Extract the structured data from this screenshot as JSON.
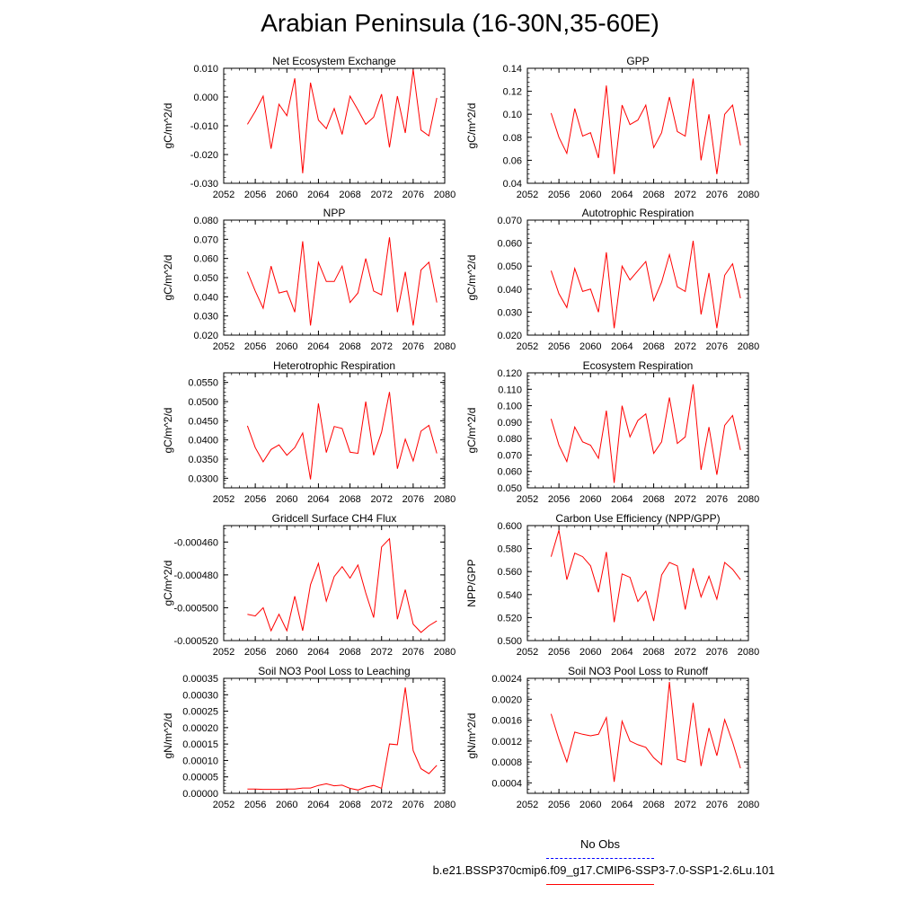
{
  "title": "Arabian Peninsula (16-30N,35-60E)",
  "colors": {
    "model_line": "#ff0000",
    "obs_line": "#0000ff"
  },
  "legend": {
    "obs_label": "No Obs",
    "model_label": "b.e21.BSSP370cmip6.f09_g17.CMIP6-SSP3-7.0-SSP1-2.6Lu.101"
  },
  "chart_data": [
    {
      "type": "line",
      "title": "Net Ecosystem Exchange",
      "ylabel": "gC/m^2/d",
      "xlim": [
        2052,
        2080
      ],
      "xticks": [
        2052,
        2056,
        2060,
        2064,
        2068,
        2072,
        2076,
        2080
      ],
      "xtick_labels": [
        "2052",
        "2056",
        "2060",
        "2064",
        "2068",
        "2072",
        "2076",
        "2080"
      ],
      "ylim": [
        -0.03,
        0.01
      ],
      "yticks": [
        -0.03,
        -0.02,
        -0.01,
        0.0,
        0.01
      ],
      "ytick_labels": [
        "-0.030",
        "-0.020",
        "-0.010",
        "0.000",
        "0.010"
      ],
      "x": [
        2055,
        2056,
        2057,
        2058,
        2059,
        2060,
        2061,
        2062,
        2063,
        2064,
        2065,
        2066,
        2067,
        2068,
        2069,
        2070,
        2071,
        2072,
        2073,
        2074,
        2075,
        2076,
        2077,
        2078,
        2079
      ],
      "series": [
        {
          "values": [
            -0.0095,
            -0.005,
            0.0003,
            -0.018,
            -0.0025,
            -0.0065,
            0.0065,
            -0.0265,
            0.005,
            -0.008,
            -0.011,
            -0.004,
            -0.013,
            0.0003,
            -0.0045,
            -0.0095,
            -0.007,
            0.001,
            -0.0175,
            0.0003,
            -0.0125,
            0.0095,
            -0.0115,
            -0.0135,
            -0.0003
          ]
        }
      ]
    },
    {
      "type": "line",
      "title": "GPP",
      "ylabel": "gC/m^2/d",
      "xlim": [
        2052,
        2080
      ],
      "xticks": [
        2052,
        2056,
        2060,
        2064,
        2068,
        2072,
        2076,
        2080
      ],
      "xtick_labels": [
        "2052",
        "2056",
        "2060",
        "2064",
        "2068",
        "2072",
        "2076",
        "2080"
      ],
      "ylim": [
        0.04,
        0.14
      ],
      "yticks": [
        0.04,
        0.06,
        0.08,
        0.1,
        0.12,
        0.14
      ],
      "ytick_labels": [
        "0.04",
        "0.06",
        "0.08",
        "0.10",
        "0.12",
        "0.14"
      ],
      "x": [
        2055,
        2056,
        2057,
        2058,
        2059,
        2060,
        2061,
        2062,
        2063,
        2064,
        2065,
        2066,
        2067,
        2068,
        2069,
        2070,
        2071,
        2072,
        2073,
        2074,
        2075,
        2076,
        2077,
        2078,
        2079
      ],
      "series": [
        {
          "values": [
            0.101,
            0.08,
            0.066,
            0.105,
            0.081,
            0.084,
            0.062,
            0.125,
            0.048,
            0.108,
            0.091,
            0.095,
            0.108,
            0.071,
            0.084,
            0.115,
            0.085,
            0.081,
            0.131,
            0.06,
            0.1,
            0.048,
            0.1,
            0.108,
            0.073
          ]
        }
      ]
    },
    {
      "type": "line",
      "title": "NPP",
      "ylabel": "gC/m^2/d",
      "xlim": [
        2052,
        2080
      ],
      "xticks": [
        2052,
        2056,
        2060,
        2064,
        2068,
        2072,
        2076,
        2080
      ],
      "xtick_labels": [
        "2052",
        "2056",
        "2060",
        "2064",
        "2068",
        "2072",
        "2076",
        "2080"
      ],
      "ylim": [
        0.02,
        0.08
      ],
      "yticks": [
        0.02,
        0.03,
        0.04,
        0.05,
        0.06,
        0.07,
        0.08
      ],
      "ytick_labels": [
        "0.020",
        "0.030",
        "0.040",
        "0.050",
        "0.060",
        "0.070",
        "0.080"
      ],
      "x": [
        2055,
        2056,
        2057,
        2058,
        2059,
        2060,
        2061,
        2062,
        2063,
        2064,
        2065,
        2066,
        2067,
        2068,
        2069,
        2070,
        2071,
        2072,
        2073,
        2074,
        2075,
        2076,
        2077,
        2078,
        2079
      ],
      "series": [
        {
          "values": [
            0.053,
            0.043,
            0.034,
            0.056,
            0.042,
            0.043,
            0.032,
            0.069,
            0.025,
            0.058,
            0.048,
            0.048,
            0.056,
            0.037,
            0.042,
            0.06,
            0.043,
            0.041,
            0.071,
            0.032,
            0.053,
            0.025,
            0.054,
            0.058,
            0.037
          ]
        }
      ]
    },
    {
      "type": "line",
      "title": "Autotrophic Respiration",
      "ylabel": "gC/m^2/d",
      "xlim": [
        2052,
        2080
      ],
      "xticks": [
        2052,
        2056,
        2060,
        2064,
        2068,
        2072,
        2076,
        2080
      ],
      "xtick_labels": [
        "2052",
        "2056",
        "2060",
        "2064",
        "2068",
        "2072",
        "2076",
        "2080"
      ],
      "ylim": [
        0.02,
        0.07
      ],
      "yticks": [
        0.02,
        0.03,
        0.04,
        0.05,
        0.06,
        0.07
      ],
      "ytick_labels": [
        "0.020",
        "0.030",
        "0.040",
        "0.050",
        "0.060",
        "0.070"
      ],
      "x": [
        2055,
        2056,
        2057,
        2058,
        2059,
        2060,
        2061,
        2062,
        2063,
        2064,
        2065,
        2066,
        2067,
        2068,
        2069,
        2070,
        2071,
        2072,
        2073,
        2074,
        2075,
        2076,
        2077,
        2078,
        2079
      ],
      "series": [
        {
          "values": [
            0.048,
            0.038,
            0.032,
            0.049,
            0.039,
            0.04,
            0.03,
            0.056,
            0.023,
            0.05,
            0.044,
            0.048,
            0.052,
            0.035,
            0.043,
            0.055,
            0.041,
            0.039,
            0.061,
            0.029,
            0.047,
            0.023,
            0.046,
            0.051,
            0.036
          ]
        }
      ]
    },
    {
      "type": "line",
      "title": "Heterotrophic Respiration",
      "ylabel": "gC/m^2/d",
      "xlim": [
        2052,
        2080
      ],
      "xticks": [
        2052,
        2056,
        2060,
        2064,
        2068,
        2072,
        2076,
        2080
      ],
      "xtick_labels": [
        "2052",
        "2056",
        "2060",
        "2064",
        "2068",
        "2072",
        "2076",
        "2080"
      ],
      "ylim": [
        0.0275,
        0.0575
      ],
      "yticks": [
        0.03,
        0.035,
        0.04,
        0.045,
        0.05,
        0.055
      ],
      "ytick_labels": [
        "0.0300",
        "0.0350",
        "0.0400",
        "0.0450",
        "0.0500",
        "0.0550"
      ],
      "x": [
        2055,
        2056,
        2057,
        2058,
        2059,
        2060,
        2061,
        2062,
        2063,
        2064,
        2065,
        2066,
        2067,
        2068,
        2069,
        2070,
        2071,
        2072,
        2073,
        2074,
        2075,
        2076,
        2077,
        2078,
        2079
      ],
      "series": [
        {
          "values": [
            0.0437,
            0.038,
            0.0343,
            0.0375,
            0.0387,
            0.036,
            0.038,
            0.0418,
            0.0297,
            0.0495,
            0.0367,
            0.0435,
            0.043,
            0.0368,
            0.0365,
            0.05,
            0.036,
            0.042,
            0.0525,
            0.0325,
            0.0402,
            0.0345,
            0.0423,
            0.0438,
            0.0365
          ]
        }
      ]
    },
    {
      "type": "line",
      "title": "Ecosystem Respiration",
      "ylabel": "gC/m^2/d",
      "xlim": [
        2052,
        2080
      ],
      "xticks": [
        2052,
        2056,
        2060,
        2064,
        2068,
        2072,
        2076,
        2080
      ],
      "xtick_labels": [
        "2052",
        "2056",
        "2060",
        "2064",
        "2068",
        "2072",
        "2076",
        "2080"
      ],
      "ylim": [
        0.05,
        0.12
      ],
      "yticks": [
        0.05,
        0.06,
        0.07,
        0.08,
        0.09,
        0.1,
        0.11,
        0.12
      ],
      "ytick_labels": [
        "0.050",
        "0.060",
        "0.070",
        "0.080",
        "0.090",
        "0.100",
        "0.110",
        "0.120"
      ],
      "x": [
        2055,
        2056,
        2057,
        2058,
        2059,
        2060,
        2061,
        2062,
        2063,
        2064,
        2065,
        2066,
        2067,
        2068,
        2069,
        2070,
        2071,
        2072,
        2073,
        2074,
        2075,
        2076,
        2077,
        2078,
        2079
      ],
      "series": [
        {
          "values": [
            0.092,
            0.076,
            0.066,
            0.087,
            0.078,
            0.076,
            0.068,
            0.097,
            0.053,
            0.1,
            0.081,
            0.091,
            0.095,
            0.071,
            0.078,
            0.105,
            0.077,
            0.081,
            0.113,
            0.061,
            0.087,
            0.058,
            0.088,
            0.094,
            0.073
          ]
        }
      ]
    },
    {
      "type": "line",
      "title": "Gridcell Surface CH4 Flux",
      "ylabel": "gC/m^2/d",
      "xlim": [
        2052,
        2080
      ],
      "xticks": [
        2052,
        2056,
        2060,
        2064,
        2068,
        2072,
        2076,
        2080
      ],
      "xtick_labels": [
        "2052",
        "2056",
        "2060",
        "2064",
        "2068",
        "2072",
        "2076",
        "2080"
      ],
      "ylim": [
        -0.00052,
        -0.00045
      ],
      "yticks": [
        -0.00052,
        -0.0005,
        -0.00048,
        -0.00046
      ],
      "ytick_labels": [
        "-0.000520",
        "-0.000500",
        "-0.000480",
        "-0.000460"
      ],
      "x": [
        2055,
        2056,
        2057,
        2058,
        2059,
        2060,
        2061,
        2062,
        2063,
        2064,
        2065,
        2066,
        2067,
        2068,
        2069,
        2070,
        2071,
        2072,
        2073,
        2074,
        2075,
        2076,
        2077,
        2078,
        2079
      ],
      "series": [
        {
          "values": [
            -0.000504,
            -0.000505,
            -0.0005,
            -0.000514,
            -0.000504,
            -0.000514,
            -0.000493,
            -0.000514,
            -0.000486,
            -0.000473,
            -0.000496,
            -0.000481,
            -0.000475,
            -0.000482,
            -0.000474,
            -0.000491,
            -0.000506,
            -0.000463,
            -0.000458,
            -0.000507,
            -0.000489,
            -0.00051,
            -0.000515,
            -0.000511,
            -0.000508
          ]
        }
      ]
    },
    {
      "type": "line",
      "title": "Carbon Use Efficiency (NPP/GPP)",
      "ylabel": "NPP/GPP",
      "xlim": [
        2052,
        2080
      ],
      "xticks": [
        2052,
        2056,
        2060,
        2064,
        2068,
        2072,
        2076,
        2080
      ],
      "xtick_labels": [
        "2052",
        "2056",
        "2060",
        "2064",
        "2068",
        "2072",
        "2076",
        "2080"
      ],
      "ylim": [
        0.5,
        0.6
      ],
      "yticks": [
        0.5,
        0.52,
        0.54,
        0.56,
        0.58,
        0.6
      ],
      "ytick_labels": [
        "0.500",
        "0.520",
        "0.540",
        "0.560",
        "0.580",
        "0.600"
      ],
      "x": [
        2055,
        2056,
        2057,
        2058,
        2059,
        2060,
        2061,
        2062,
        2063,
        2064,
        2065,
        2066,
        2067,
        2068,
        2069,
        2070,
        2071,
        2072,
        2073,
        2074,
        2075,
        2076,
        2077,
        2078,
        2079
      ],
      "series": [
        {
          "values": [
            0.573,
            0.596,
            0.553,
            0.576,
            0.573,
            0.565,
            0.542,
            0.577,
            0.516,
            0.558,
            0.555,
            0.534,
            0.543,
            0.517,
            0.557,
            0.568,
            0.565,
            0.527,
            0.563,
            0.538,
            0.556,
            0.536,
            0.568,
            0.562,
            0.553
          ]
        }
      ]
    },
    {
      "type": "line",
      "title": "Soil NO3 Pool Loss to Leaching",
      "ylabel": "gN/m^2/d",
      "xlim": [
        2052,
        2080
      ],
      "xticks": [
        2052,
        2056,
        2060,
        2064,
        2068,
        2072,
        2076,
        2080
      ],
      "xtick_labels": [
        "2052",
        "2056",
        "2060",
        "2064",
        "2068",
        "2072",
        "2076",
        "2080"
      ],
      "ylim": [
        0.0,
        0.00035
      ],
      "yticks": [
        0.0,
        5e-05,
        0.0001,
        0.00015,
        0.0002,
        0.00025,
        0.0003,
        0.00035
      ],
      "ytick_labels": [
        "0.00000",
        "0.00005",
        "0.00010",
        "0.00015",
        "0.00020",
        "0.00025",
        "0.00030",
        "0.00035"
      ],
      "x": [
        2055,
        2056,
        2057,
        2058,
        2059,
        2060,
        2061,
        2062,
        2063,
        2064,
        2065,
        2066,
        2067,
        2068,
        2069,
        2070,
        2071,
        2072,
        2073,
        2074,
        2075,
        2076,
        2077,
        2078,
        2079
      ],
      "series": [
        {
          "values": [
            1.3e-05,
            1.3e-05,
            1.2e-05,
            1.2e-05,
            1.2e-05,
            1.3e-05,
            1.3e-05,
            1.6e-05,
            1.6e-05,
            2.4e-05,
            2.9e-05,
            2.3e-05,
            2.5e-05,
            1.5e-05,
            1e-05,
            1.9e-05,
            2.4e-05,
            1.5e-05,
            0.00015,
            0.000148,
            0.000322,
            0.00013,
            7.5e-05,
            6e-05,
            8.5e-05
          ]
        }
      ]
    },
    {
      "type": "line",
      "title": "Soil NO3 Pool Loss to Runoff",
      "ylabel": "gN/m^2/d",
      "xlim": [
        2052,
        2080
      ],
      "xticks": [
        2052,
        2056,
        2060,
        2064,
        2068,
        2072,
        2076,
        2080
      ],
      "xtick_labels": [
        "2052",
        "2056",
        "2060",
        "2064",
        "2068",
        "2072",
        "2076",
        "2080"
      ],
      "ylim": [
        0.0002,
        0.0024
      ],
      "yticks": [
        0.0004,
        0.0008,
        0.0012,
        0.0016,
        0.002,
        0.0024
      ],
      "ytick_labels": [
        "0.0004",
        "0.0008",
        "0.0012",
        "0.0016",
        "0.0020",
        "0.0024"
      ],
      "x": [
        2055,
        2056,
        2057,
        2058,
        2059,
        2060,
        2061,
        2062,
        2063,
        2064,
        2065,
        2066,
        2067,
        2068,
        2069,
        2070,
        2071,
        2072,
        2073,
        2074,
        2075,
        2076,
        2077,
        2078,
        2079
      ],
      "series": [
        {
          "values": [
            0.00172,
            0.00123,
            0.0008,
            0.00137,
            0.00133,
            0.0013,
            0.00133,
            0.00165,
            0.00042,
            0.00158,
            0.0012,
            0.00113,
            0.00108,
            0.00088,
            0.00075,
            0.00233,
            0.00085,
            0.0008,
            0.00193,
            0.00072,
            0.00145,
            0.00092,
            0.00161,
            0.00118,
            0.00068
          ]
        }
      ]
    }
  ]
}
